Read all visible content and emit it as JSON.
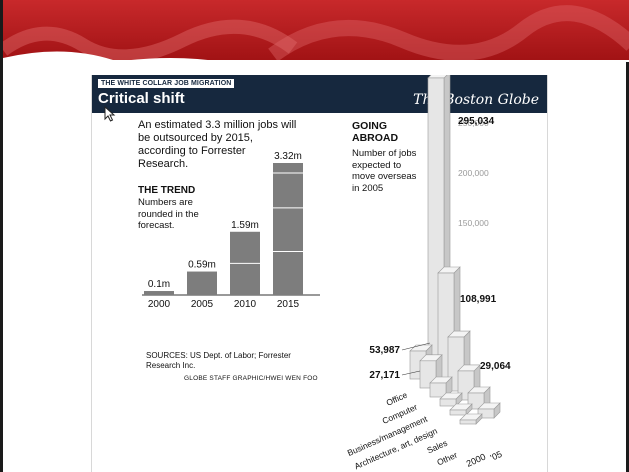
{
  "colors": {
    "banner_red": "#b31a1c",
    "banner_light": "#d7484a",
    "header_navy": "#16283e",
    "bar_gray": "#7d7d7d",
    "bar_front": "#e6e6e6",
    "bar_side": "#c7c7c7",
    "bar_top": "#f4f4f4"
  },
  "graphic": {
    "kicker": "THE WHITE COLLAR JOB MIGRATION",
    "headline": "Critical shift",
    "masthead": "The Boston Globe",
    "intro": "An estimated 3.3 million jobs will be outsourced by 2015, according to Forrester Research.",
    "trend_title": "THE TREND",
    "trend_note": "Numbers are rounded in the forecast.",
    "abroad_title": "GOING ABROAD",
    "abroad_note": "Number of jobs expected to move overseas in 2005",
    "sources": "SOURCES: US Dept. of Labor; Forrester Research Inc.",
    "credit": "GLOBE STAFF GRAPHIC/HWEI WEN FOO"
  },
  "chart_data": [
    {
      "type": "bar",
      "title": "THE TREND",
      "categories": [
        "2000",
        "2005",
        "2010",
        "2015"
      ],
      "values": [
        0.1,
        0.59,
        1.59,
        3.32
      ],
      "data_labels": [
        "0.1m",
        "0.59m",
        "1.59m",
        "3.32m"
      ],
      "units": "million jobs",
      "ylim": [
        0,
        3.32
      ]
    },
    {
      "type": "bar",
      "title": "GOING ABROAD",
      "subtitle": "Number of jobs expected to move overseas in 2005",
      "categories": [
        "Office",
        "Computer",
        "Business/management",
        "Architecture, art, design",
        "Sales",
        "Other"
      ],
      "x": [
        "2000",
        "'05"
      ],
      "series": [
        {
          "name": "2000",
          "values": [
            28000,
            27171,
            14000,
            7000,
            5000,
            3000
          ]
        },
        {
          "name": "'05",
          "values": [
            295034,
            108991,
            53987,
            29064,
            16000,
            9000
          ]
        }
      ],
      "data_labels": [
        "295,034",
        "108,991",
        "53,987",
        "29,064",
        "27,171"
      ],
      "ytick_labels": [
        "250,000",
        "200,000",
        "150,000"
      ],
      "ylim": [
        0,
        300000
      ]
    }
  ]
}
